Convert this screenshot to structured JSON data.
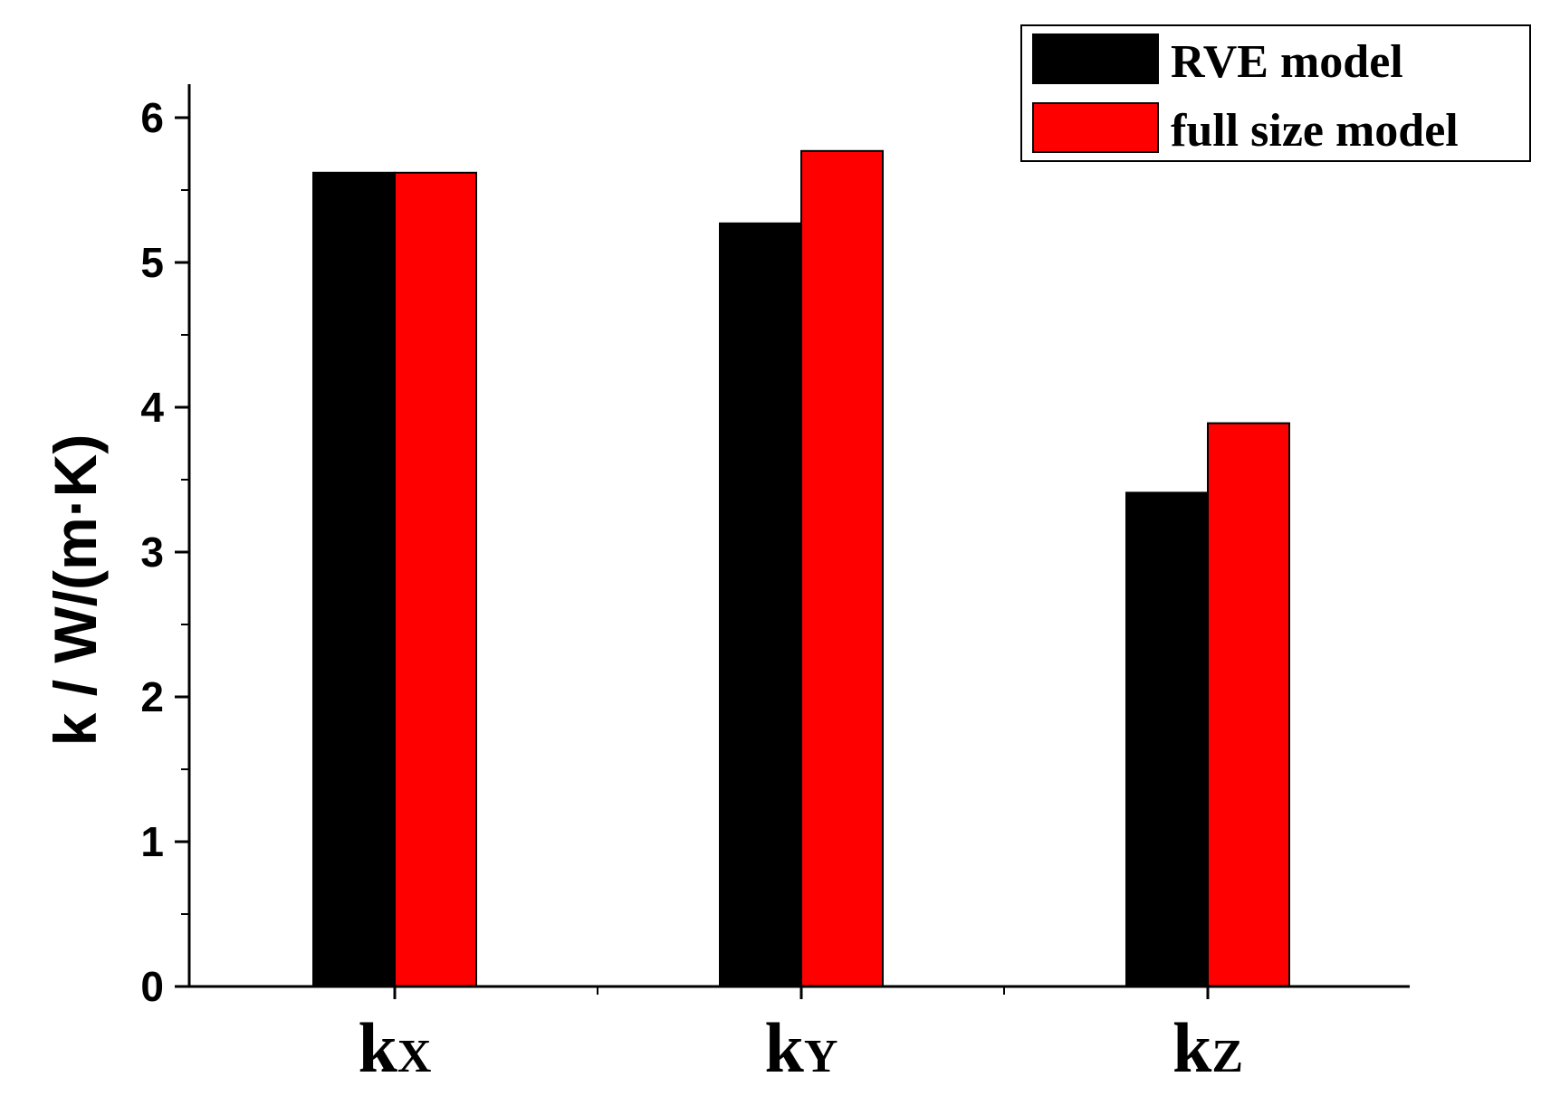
{
  "chart_data": {
    "type": "bar",
    "title": "",
    "xlabel": "",
    "ylabel": "k / W/(m·K)",
    "ylim": [
      0,
      6
    ],
    "yticks": [
      0,
      1,
      2,
      3,
      4,
      5,
      6
    ],
    "categories": [
      {
        "main": "k",
        "sub": "X"
      },
      {
        "main": "k",
        "sub": "Y"
      },
      {
        "main": "k",
        "sub": "Z"
      }
    ],
    "series": [
      {
        "name": "RVE model",
        "color": "#000000",
        "values": [
          5.62,
          5.27,
          3.41
        ]
      },
      {
        "name": "full size model",
        "color": "#ff0000",
        "values": [
          5.62,
          5.77,
          3.89
        ]
      }
    ],
    "legend_position": "top-right",
    "grid": false
  }
}
